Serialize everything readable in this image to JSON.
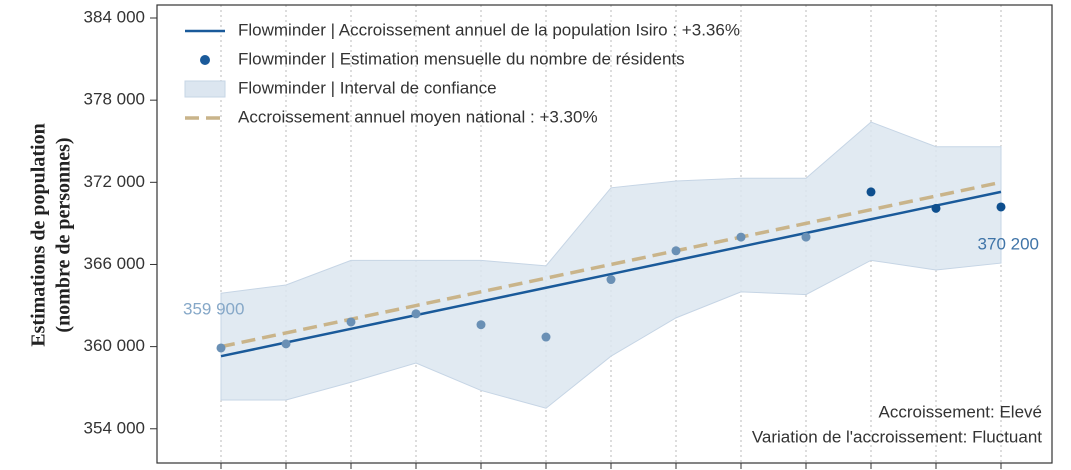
{
  "chart_data": {
    "type": "line",
    "ylabel": [
      "Estimations de population",
      "(nombre de personnes)"
    ],
    "categories": [
      null,
      null,
      null,
      null,
      null,
      null,
      null,
      null,
      null,
      null,
      null,
      null,
      null
    ],
    "ylim": [
      351500,
      384950
    ],
    "yticks": [
      {
        "value": 354000,
        "label": "354 000"
      },
      {
        "value": 360000,
        "label": "360 000"
      },
      {
        "value": 366000,
        "label": "366 000"
      },
      {
        "value": 372000,
        "label": "372 000"
      },
      {
        "value": 378000,
        "label": "378 000"
      },
      {
        "value": 384000,
        "label": "384 000"
      }
    ],
    "grid": true,
    "legend": "upper left",
    "series": [
      {
        "name": "Flowminder | Accroissement annuel de la population Isiro : +3.36%",
        "kind": "line",
        "color": "#1a5a9a",
        "values": [
          359300,
          360300,
          361300,
          362300,
          363300,
          364300,
          365300,
          366300,
          367300,
          368300,
          369300,
          370300,
          371300
        ]
      },
      {
        "name": "Flowminder | Estimation mensuelle du nombre de résidents",
        "kind": "scatter",
        "color": "#1a5a9a",
        "point_colors": [
          "#6a90b5",
          "#6a90b5",
          "#6a90b5",
          "#6a90b5",
          "#6a90b5",
          "#6a90b5",
          "#6a90b5",
          "#6a90b5",
          "#6a90b5",
          "#6a90b5",
          "#0e4f8e",
          "#0e4f8e",
          "#0e4f8e"
        ],
        "values": [
          359900,
          360200,
          361800,
          362400,
          361600,
          360700,
          364900,
          367000,
          368000,
          368000,
          371300,
          370100,
          370200
        ],
        "value_labels": [
          "359 900",
          null,
          null,
          null,
          null,
          null,
          null,
          null,
          null,
          null,
          null,
          null,
          "370 200"
        ]
      },
      {
        "name": "Flowminder | Interval de confiance",
        "kind": "band",
        "color": "#dce6f0",
        "upper": [
          363900,
          364500,
          366300,
          366300,
          366300,
          365900,
          371600,
          372100,
          372300,
          372300,
          376400,
          374600,
          374600
        ],
        "lower": [
          356100,
          356100,
          357400,
          358800,
          356800,
          355500,
          359300,
          362100,
          364000,
          363800,
          366300,
          365600,
          366100
        ]
      },
      {
        "name": "Accroissement annuel moyen national : +3.30%",
        "kind": "dashed",
        "color": "#c9b48a",
        "values": [
          360000,
          361000,
          362000,
          363000,
          364000,
          365000,
          366000,
          367000,
          368000,
          369000,
          370000,
          371000,
          372000
        ]
      }
    ],
    "annotations": [
      "Accroissement: Elevé",
      "Variation de l'accroissement: Fluctuant"
    ]
  }
}
